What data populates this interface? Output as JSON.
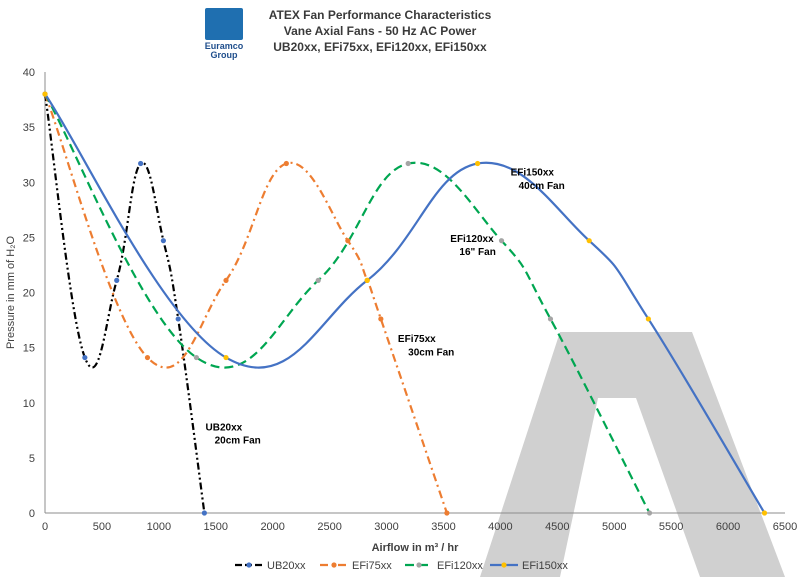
{
  "logo": {
    "text_line1": "Euramco",
    "text_line2": "Group"
  },
  "chart_data": {
    "type": "line",
    "title": [
      "ATEX Fan Performance Characteristics",
      "Vane Axial Fans - 50 Hz AC Power",
      "UB20xx, EFi75xx, EFi120xx, EFi150xx"
    ],
    "xlabel": "Airflow in m³ / hr",
    "ylabel": "Pressure in mm of H₂O",
    "xlim": [
      0,
      6500
    ],
    "ylim": [
      0,
      40
    ],
    "x_ticks": [
      0,
      500,
      1000,
      1500,
      2000,
      2500,
      3000,
      3500,
      4000,
      4500,
      5000,
      5500,
      6000,
      6500
    ],
    "y_ticks": [
      0,
      5,
      10,
      15,
      20,
      25,
      30,
      35,
      40
    ],
    "grid": false,
    "legend_position": "bottom",
    "series": [
      {
        "name": "UB20xx",
        "color": "#000000",
        "dash": "dash-dot-dot",
        "marker_color": "#4472c4",
        "points": [
          [
            0,
            38
          ],
          [
            350,
            14.1
          ],
          [
            630,
            21.1
          ],
          [
            840,
            31.7
          ],
          [
            1040,
            24.7
          ],
          [
            1170,
            17.6
          ],
          [
            1400,
            0
          ]
        ],
        "annotation": [
          "UB20xx",
          "20cm Fan"
        ]
      },
      {
        "name": "EFi75xx",
        "color": "#ed7d31",
        "dash": "dash-dot",
        "marker_color": "#ed7d31",
        "points": [
          [
            0,
            38
          ],
          [
            900,
            14.1
          ],
          [
            1590,
            21.1
          ],
          [
            2120,
            31.7
          ],
          [
            2660,
            24.7
          ],
          [
            2830,
            21.1
          ],
          [
            2950,
            17.6
          ],
          [
            3530,
            0
          ]
        ],
        "annotation": [
          "EFi75xx",
          "30cm Fan"
        ]
      },
      {
        "name": "EFi120xx",
        "color": "#00a651",
        "dash": "dash",
        "marker_color": "#a5a5a5",
        "points": [
          [
            0,
            38
          ],
          [
            1330,
            14.1
          ],
          [
            2400,
            21.1
          ],
          [
            3190,
            31.7
          ],
          [
            4010,
            24.7
          ],
          [
            4440,
            17.6
          ],
          [
            5310,
            0
          ]
        ],
        "annotation": [
          "EFi120xx",
          "16\" Fan"
        ]
      },
      {
        "name": "EFi150xx",
        "color": "#4472c4",
        "dash": "solid",
        "marker_color": "#ffc000",
        "points": [
          [
            0,
            38
          ],
          [
            1590,
            14.1
          ],
          [
            2830,
            21.1
          ],
          [
            3800,
            31.7
          ],
          [
            4780,
            24.7
          ],
          [
            5300,
            17.6
          ],
          [
            6320,
            0
          ]
        ],
        "annotation": [
          "EFi150xx",
          "40cm Fan"
        ]
      }
    ]
  }
}
